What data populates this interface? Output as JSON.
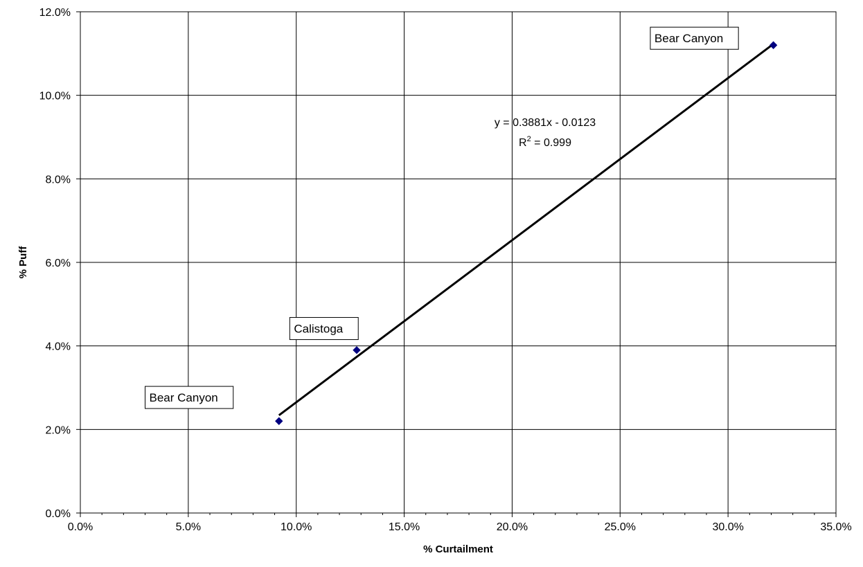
{
  "chart_data": {
    "type": "scatter",
    "title": "",
    "xlabel": "% Curtailment",
    "ylabel": "% Puff",
    "xlim": [
      0.0,
      0.35
    ],
    "ylim": [
      0.0,
      0.12
    ],
    "x_ticks": [
      0.0,
      0.05,
      0.1,
      0.15,
      0.2,
      0.25,
      0.3,
      0.35
    ],
    "x_tick_labels": [
      "0.0%",
      "5.0%",
      "10.0%",
      "15.0%",
      "20.0%",
      "25.0%",
      "30.0%",
      "35.0%"
    ],
    "y_ticks": [
      0.0,
      0.02,
      0.04,
      0.06,
      0.08,
      0.1,
      0.12
    ],
    "y_tick_labels": [
      "0.0%",
      "2.0%",
      "4.0%",
      "6.0%",
      "8.0%",
      "10.0%",
      "12.0%"
    ],
    "grid": true,
    "legend": "none",
    "marker_color": "#000080",
    "points": [
      {
        "x": 0.092,
        "y": 0.022
      },
      {
        "x": 0.128,
        "y": 0.039
      },
      {
        "x": 0.321,
        "y": 0.112
      }
    ],
    "annotations": [
      {
        "text": "Bear Canyon",
        "x": 0.03,
        "y": 0.0275
      },
      {
        "text": "Calistoga",
        "x": 0.097,
        "y": 0.044
      },
      {
        "text": "Bear Canyon",
        "x": 0.264,
        "y": 0.1135
      }
    ],
    "trendline": {
      "slope": 0.3881,
      "intercept": -0.0123,
      "x_range": [
        0.092,
        0.321
      ],
      "equation": "y = 0.3881x - 0.0123",
      "r2_prefix": "R",
      "r2_sup": "2",
      "r2_value": " = 0.999"
    }
  }
}
